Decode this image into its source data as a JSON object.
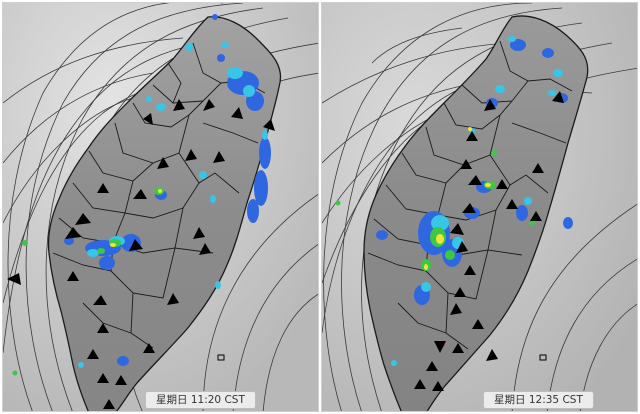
{
  "panels": [
    {
      "id": "left",
      "label": {
        "day": "星期日",
        "time": "11:20",
        "tz": "CST"
      }
    },
    {
      "id": "right",
      "label": {
        "day": "星期日",
        "time": "12:35",
        "tz": "CST"
      }
    }
  ],
  "colors": {
    "background_gray": "#c9c9c9",
    "land_gray": "#8f8f8f",
    "boundary": "#1a1a1a",
    "isobar": "#3a3a3a",
    "radar_blue": "#2f67e0",
    "radar_cyan": "#37c5e8",
    "radar_green": "#3cc845",
    "radar_yellow": "#f4e43a",
    "radar_red": "#e2402c",
    "wind_arrow": "#000000"
  }
}
